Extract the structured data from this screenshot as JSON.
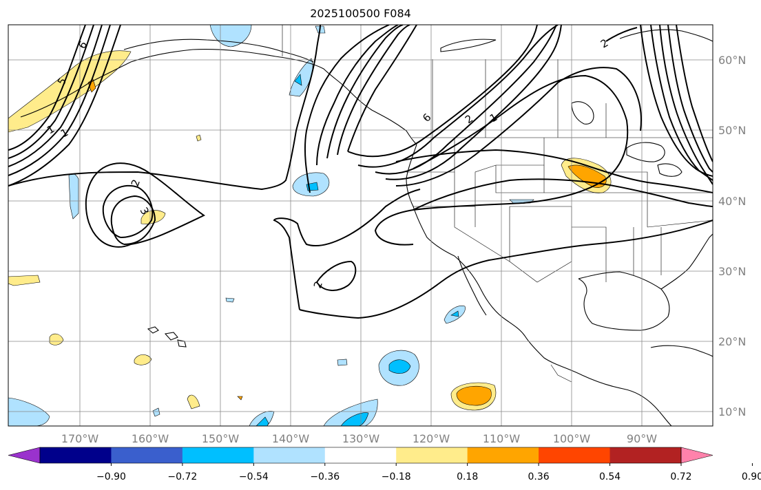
{
  "title": "2025100500 F084",
  "map": {
    "lon_labels": [
      "170°W",
      "160°W",
      "150°W",
      "140°W",
      "130°W",
      "120°W",
      "110°W",
      "100°W",
      "90°W"
    ],
    "lat_labels": [
      "60°N",
      "50°N",
      "40°N",
      "30°N",
      "20°N",
      "10°N"
    ],
    "contour_labels": [
      "6",
      "5",
      "1",
      "1",
      "2",
      "3",
      "2",
      "6",
      "2",
      "1",
      "2"
    ],
    "grid": true
  },
  "colorbar": {
    "ticks": [
      "−0.90",
      "−0.72",
      "−0.54",
      "−0.36",
      "−0.18",
      "0.18",
      "0.36",
      "0.54",
      "0.72",
      "0.90"
    ],
    "colors": [
      "#9a32cd",
      "#00008b",
      "#3a5fcd",
      "#00bfff",
      "#b0e2ff",
      "#ffffff",
      "#ffec8b",
      "#ffa500",
      "#ff4500",
      "#b22222",
      "#ff82ab"
    ]
  },
  "fill_colors": {
    "light_blue": "#b0e2ff",
    "blue": "#00bfff",
    "light_yellow": "#ffec8b",
    "orange": "#ffa500"
  }
}
